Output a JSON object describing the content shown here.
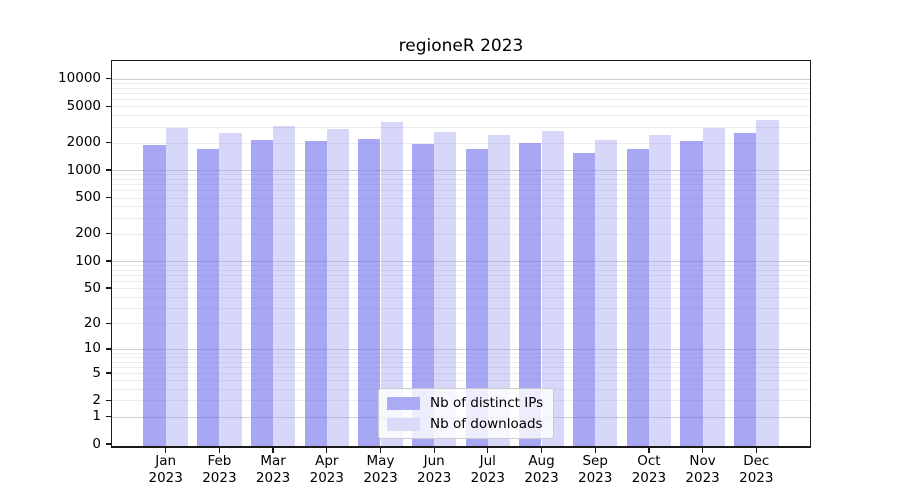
{
  "title": "regioneR 2023",
  "chart_data": {
    "type": "bar",
    "title": "regioneR 2023",
    "categories": [
      "Jan",
      "Feb",
      "Mar",
      "Apr",
      "May",
      "Jun",
      "Jul",
      "Aug",
      "Sep",
      "Oct",
      "Nov",
      "Dec"
    ],
    "year_label": "2023",
    "series": [
      {
        "name": "Nb of distinct IPs",
        "color": "#aaaaf5",
        "fill": "rgba(113,113,238,0.62)",
        "values": [
          1900,
          1700,
          2150,
          2100,
          2200,
          1950,
          1700,
          2000,
          1550,
          1700,
          2100,
          2550
        ]
      },
      {
        "name": "Nb of downloads",
        "color": "#dadaf9",
        "fill": "rgba(149,149,240,0.38)",
        "values": [
          2900,
          2550,
          3050,
          2850,
          3400,
          2600,
          2400,
          2650,
          2150,
          2450,
          2900,
          3500
        ]
      }
    ],
    "y_ticks": [
      0,
      1,
      2,
      5,
      10,
      20,
      50,
      100,
      200,
      500,
      1000,
      2000,
      5000,
      10000
    ],
    "y_major_gridlines": [
      1,
      10,
      100,
      1000,
      10000
    ],
    "y_scale": "log1p",
    "ylim": [
      0,
      15800
    ],
    "xlabel": "",
    "ylabel": "",
    "grid": "horizontal major+minor",
    "legend_position": "lower center"
  }
}
